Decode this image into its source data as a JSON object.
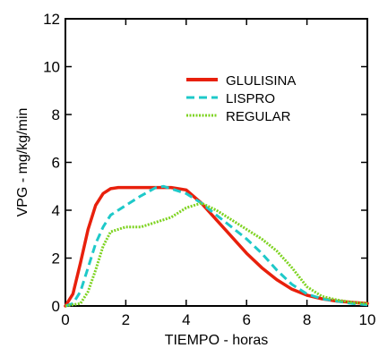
{
  "chart_data": {
    "type": "line",
    "title": "",
    "xlabel": "TIEMPO - horas",
    "ylabel": "VPG - mg/kg/min",
    "xlim": [
      0,
      10
    ],
    "ylim": [
      0,
      12
    ],
    "xticks": [
      0,
      2,
      4,
      6,
      8,
      10
    ],
    "yticks": [
      0,
      2,
      4,
      6,
      8,
      10,
      12
    ],
    "grid": false,
    "legend": "top-right",
    "series": [
      {
        "name": "GLULISINA",
        "color": "#e8200c",
        "style": "solid",
        "x": [
          0,
          0.25,
          0.5,
          0.75,
          1.0,
          1.25,
          1.5,
          1.75,
          2.0,
          2.5,
          3.0,
          3.5,
          4.0,
          4.5,
          5.0,
          5.5,
          6.0,
          6.5,
          7.0,
          7.5,
          8.0,
          8.5,
          9.0,
          9.5,
          10.0
        ],
        "y": [
          0,
          0.5,
          1.8,
          3.2,
          4.2,
          4.7,
          4.9,
          4.95,
          4.95,
          4.95,
          4.95,
          4.95,
          4.85,
          4.3,
          3.6,
          2.9,
          2.2,
          1.6,
          1.1,
          0.7,
          0.45,
          0.3,
          0.2,
          0.15,
          0.1
        ]
      },
      {
        "name": "LISPRO",
        "color": "#1ec9c9",
        "style": "dashed",
        "x": [
          0,
          0.25,
          0.5,
          0.75,
          1.0,
          1.25,
          1.5,
          2.0,
          2.5,
          3.0,
          3.25,
          3.5,
          4.0,
          4.5,
          5.0,
          5.5,
          6.0,
          6.5,
          7.0,
          7.5,
          8.0,
          8.5,
          9.0,
          9.5,
          10.0
        ],
        "y": [
          0,
          0.1,
          0.6,
          1.6,
          2.6,
          3.3,
          3.8,
          4.2,
          4.6,
          4.95,
          5.0,
          4.9,
          4.7,
          4.3,
          3.8,
          3.3,
          2.8,
          2.2,
          1.5,
          0.9,
          0.5,
          0.3,
          0.2,
          0.1,
          0.05
        ]
      },
      {
        "name": "REGULAR",
        "color": "#7ed321",
        "style": "dotted",
        "x": [
          0,
          0.5,
          0.75,
          1.0,
          1.25,
          1.5,
          2.0,
          2.5,
          3.0,
          3.5,
          4.0,
          4.5,
          5.0,
          5.5,
          6.0,
          6.5,
          7.0,
          7.5,
          8.0,
          8.5,
          9.0,
          9.5,
          10.0
        ],
        "y": [
          0,
          0.1,
          0.6,
          1.5,
          2.5,
          3.1,
          3.3,
          3.3,
          3.5,
          3.7,
          4.1,
          4.3,
          4.0,
          3.6,
          3.2,
          2.8,
          2.3,
          1.6,
          0.8,
          0.4,
          0.25,
          0.15,
          0.1
        ]
      }
    ]
  }
}
